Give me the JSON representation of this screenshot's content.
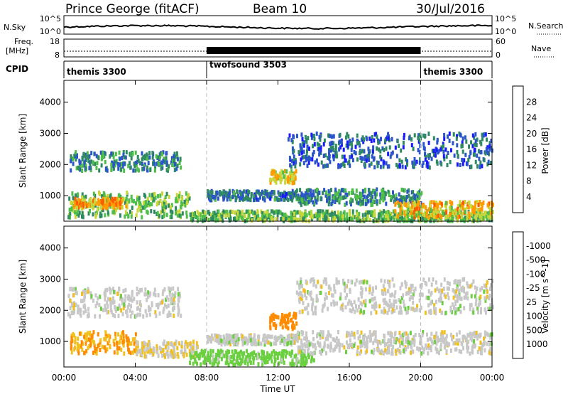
{
  "header": {
    "station": "Prince George (fitACF)",
    "beam": "Beam 10",
    "date": "30/Jul/2016"
  },
  "top_panels": {
    "nsky_label": "N.Sky",
    "nsky_ticks": [
      "10^5",
      "10^0"
    ],
    "nsearch_label": "N.Search",
    "nsearch_ticks": [
      "10^5",
      "10^0"
    ],
    "freq_label_1": "Freq.",
    "freq_label_2": "[MHz]",
    "freq_ticks": [
      "18",
      "8"
    ],
    "nave_label": "Nave",
    "nave_ticks": [
      "60",
      "0"
    ],
    "cpid_label": "CPID",
    "modes": [
      {
        "name": "themis 3300",
        "start_hour": 0,
        "end_hour": 8
      },
      {
        "name": "twofsound 3503",
        "start_hour": 8,
        "end_hour": 20
      },
      {
        "name": "themis 3300",
        "start_hour": 20,
        "end_hour": 24
      }
    ]
  },
  "time_axis": {
    "label": "Time UT",
    "ticks": [
      "00:00",
      "04:00",
      "08:00",
      "12:00",
      "16:00",
      "20:00",
      "00:00"
    ],
    "range_hours": [
      0,
      24
    ]
  },
  "range_axis": {
    "label": "Slant Range [km]",
    "ticks": [
      "1000",
      "2000",
      "3000",
      "4000"
    ],
    "range_km": [
      180,
      4700
    ]
  },
  "power_colorbar": {
    "label": "Power [dB]",
    "ticks": [
      "4",
      "8",
      "12",
      "16",
      "20",
      "24",
      "28"
    ],
    "colors": [
      "#1a1aff",
      "#2b55c8",
      "#2f8a62",
      "#4fbf4a",
      "#c8d63a",
      "#ff9a00",
      "#ff5a00",
      "#e00000"
    ]
  },
  "velocity_colorbar": {
    "label": "Velocity [m s^-1]",
    "ticks": [
      "1000",
      "500",
      "100",
      "25",
      "-25",
      "-100",
      "-500",
      "-1000"
    ],
    "colors": [
      "#2040d0",
      "#3f6fbf",
      "#4a9a60",
      "#6ad040",
      "#c8c8c8",
      "#f0c020",
      "#ff8c00",
      "#f04000",
      "#e00000"
    ]
  },
  "chart_data": [
    {
      "type": "heatmap",
      "title": "Power [dB]",
      "xlabel": "Time UT",
      "ylabel": "Slant Range [km]",
      "xlim": [
        0,
        24
      ],
      "ylim": [
        180,
        4700
      ],
      "regions": [
        {
          "t": [
            0.2,
            7.0
          ],
          "r": [
            300,
            1100
          ],
          "val": 14
        },
        {
          "t": [
            0.3,
            6.5
          ],
          "r": [
            1800,
            2400
          ],
          "val": 10
        },
        {
          "t": [
            0.5,
            3.5
          ],
          "r": [
            600,
            900
          ],
          "val": 22
        },
        {
          "t": [
            7.0,
            24.0
          ],
          "r": [
            180,
            500
          ],
          "val": 14
        },
        {
          "t": [
            8.0,
            13.0
          ],
          "r": [
            850,
            1150
          ],
          "val": 8
        },
        {
          "t": [
            11.5,
            13.0
          ],
          "r": [
            1400,
            1800
          ],
          "val": 18
        },
        {
          "t": [
            13.0,
            20.0
          ],
          "r": [
            700,
            1200
          ],
          "val": 10
        },
        {
          "t": [
            12.5,
            24.0
          ],
          "r": [
            1900,
            3000
          ],
          "val": 7
        },
        {
          "t": [
            18.5,
            24.0
          ],
          "r": [
            300,
            800
          ],
          "val": 20
        }
      ]
    },
    {
      "type": "heatmap",
      "title": "Velocity [m s^-1]",
      "xlabel": "Time UT",
      "ylabel": "Slant Range [km]",
      "xlim": [
        0,
        24
      ],
      "ylim": [
        180,
        4700
      ],
      "regions": [
        {
          "t": [
            0.2,
            6.5
          ],
          "r": [
            1800,
            2700
          ],
          "val": 0
        },
        {
          "t": [
            0.3,
            4.0
          ],
          "r": [
            600,
            1300
          ],
          "val": -100
        },
        {
          "t": [
            4.0,
            7.5
          ],
          "r": [
            500,
            1000
          ],
          "val": -25
        },
        {
          "t": [
            7.0,
            14.0
          ],
          "r": [
            250,
            700
          ],
          "val": 50
        },
        {
          "t": [
            8.0,
            13.0
          ],
          "r": [
            900,
            1200
          ],
          "val": 0
        },
        {
          "t": [
            11.5,
            13.0
          ],
          "r": [
            1400,
            1900
          ],
          "val": -150
        },
        {
          "t": [
            13.0,
            24.0
          ],
          "r": [
            600,
            1300
          ],
          "val": 0
        },
        {
          "t": [
            13.0,
            24.0
          ],
          "r": [
            1900,
            3000
          ],
          "val": 0
        }
      ]
    }
  ]
}
